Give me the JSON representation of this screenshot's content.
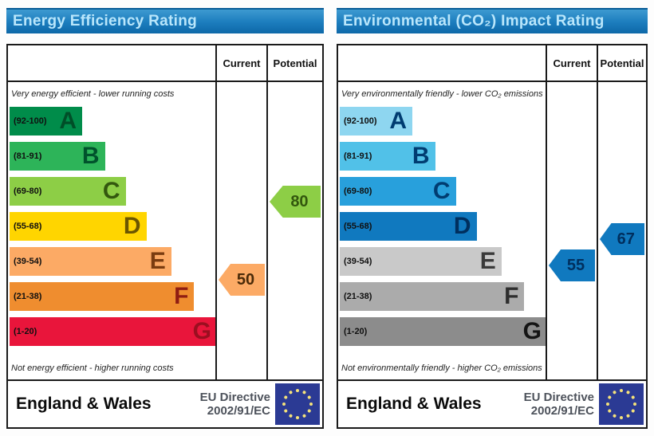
{
  "chart_data": [
    {
      "type": "bar",
      "title": "Energy Efficiency Rating",
      "columns": {
        "current": "Current",
        "potential": "Potential"
      },
      "top_caption": "Very energy efficient - lower running costs",
      "bottom_caption": "Not energy efficient - higher running costs",
      "bands": [
        {
          "letter": "A",
          "label": "(92-100)",
          "min": 92,
          "max": 100,
          "width_pct": 35,
          "color": "#008c4a",
          "letter_color": "#004e28"
        },
        {
          "letter": "B",
          "label": "(81-91)",
          "min": 81,
          "max": 91,
          "width_pct": 46,
          "color": "#2db459",
          "letter_color": "#00522c"
        },
        {
          "letter": "C",
          "label": "(69-80)",
          "min": 69,
          "max": 80,
          "width_pct": 56,
          "color": "#8dce46",
          "letter_color": "#33570e"
        },
        {
          "letter": "D",
          "label": "(55-68)",
          "min": 55,
          "max": 68,
          "width_pct": 66,
          "color": "#ffd500",
          "letter_color": "#6b5600"
        },
        {
          "letter": "E",
          "label": "(39-54)",
          "min": 39,
          "max": 54,
          "width_pct": 78,
          "color": "#fcaa65",
          "letter_color": "#7a3c10"
        },
        {
          "letter": "F",
          "label": "(21-38)",
          "min": 21,
          "max": 38,
          "width_pct": 89,
          "color": "#ef8d2f",
          "letter_color": "#8f1d12"
        },
        {
          "letter": "G",
          "label": "(1-20)",
          "min": 1,
          "max": 20,
          "width_pct": 100,
          "color": "#e9153b",
          "letter_color": "#9b0f20"
        }
      ],
      "current": {
        "value": 50,
        "color": "#fcaa65",
        "text_color": "#4a2a08"
      },
      "potential": {
        "value": 80,
        "color": "#8dce46",
        "text_color": "#33570e"
      },
      "footer": {
        "region": "England & Wales",
        "eu_directive_line1": "EU Directive",
        "eu_directive_line2": "2002/91/EC"
      }
    },
    {
      "type": "bar",
      "title": "Environmental (CO₂) Impact Rating",
      "columns": {
        "current": "Current",
        "potential": "Potential"
      },
      "top_caption": "Very environmentally friendly - lower CO₂ emissions",
      "bottom_caption": "Not environmentally friendly - higher CO₂ emissions",
      "bands": [
        {
          "letter": "A",
          "label": "(92-100)",
          "min": 92,
          "max": 100,
          "width_pct": 35,
          "color": "#8ed6f0",
          "letter_color": "#003c71"
        },
        {
          "letter": "B",
          "label": "(81-91)",
          "min": 81,
          "max": 91,
          "width_pct": 46,
          "color": "#51c1e8",
          "letter_color": "#003c71"
        },
        {
          "letter": "C",
          "label": "(69-80)",
          "min": 69,
          "max": 80,
          "width_pct": 56,
          "color": "#28a0dc",
          "letter_color": "#003c71"
        },
        {
          "letter": "D",
          "label": "(55-68)",
          "min": 55,
          "max": 68,
          "width_pct": 66,
          "color": "#1079bf",
          "letter_color": "#002f5e"
        },
        {
          "letter": "E",
          "label": "(39-54)",
          "min": 39,
          "max": 54,
          "width_pct": 78,
          "color": "#c9c9c9",
          "letter_color": "#3a3a3a"
        },
        {
          "letter": "F",
          "label": "(21-38)",
          "min": 21,
          "max": 38,
          "width_pct": 89,
          "color": "#ababab",
          "letter_color": "#2e2e2e"
        },
        {
          "letter": "G",
          "label": "(1-20)",
          "min": 1,
          "max": 20,
          "width_pct": 100,
          "color": "#8c8c8c",
          "letter_color": "#141414"
        }
      ],
      "current": {
        "value": 55,
        "color": "#1079bf",
        "text_color": "#002f5e"
      },
      "potential": {
        "value": 67,
        "color": "#1079bf",
        "text_color": "#002f5e"
      },
      "footer": {
        "region": "England & Wales",
        "eu_directive_line1": "EU Directive",
        "eu_directive_line2": "2002/91/EC"
      }
    }
  ]
}
